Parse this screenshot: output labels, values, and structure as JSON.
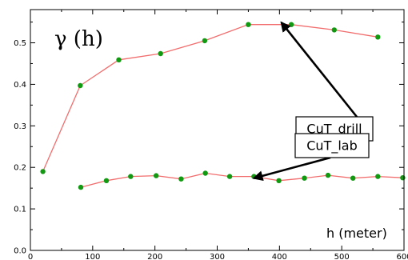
{
  "chart_data": {
    "type": "line",
    "title": "γ (h)",
    "xlabel": "h (meter)",
    "ylabel": "",
    "xlim": [
      0,
      600
    ],
    "ylim": [
      0,
      0.58
    ],
    "xticks": [
      0,
      100,
      200,
      300,
      400,
      500,
      600
    ],
    "yticks": [
      0.0,
      0.1,
      0.2,
      0.3,
      0.4,
      0.5
    ],
    "grid": false,
    "series": [
      {
        "name": "CuT_drill",
        "color": "#f26d6d",
        "marker_color": "#119a11",
        "x": [
          20,
          80,
          142,
          209,
          280,
          350,
          419,
          488,
          558
        ],
        "y": [
          0.19,
          0.397,
          0.459,
          0.474,
          0.505,
          0.544,
          0.544,
          0.531,
          0.514
        ]
      },
      {
        "name": "CuT_lab",
        "color": "#f26d6d",
        "marker_color": "#119a11",
        "x": [
          81,
          122,
          161,
          202,
          242,
          281,
          320,
          359,
          399,
          440,
          478,
          518,
          558,
          598
        ],
        "y": [
          0.152,
          0.168,
          0.178,
          0.18,
          0.172,
          0.186,
          0.178,
          0.178,
          0.168,
          0.174,
          0.181,
          0.174,
          0.178,
          0.175
        ]
      }
    ],
    "annotations": [
      {
        "text": "CuT_drill",
        "arrow_to": [
          403,
          0.549
        ]
      },
      {
        "text": "CuT_lab",
        "arrow_to": [
          359,
          0.174
        ]
      }
    ]
  }
}
